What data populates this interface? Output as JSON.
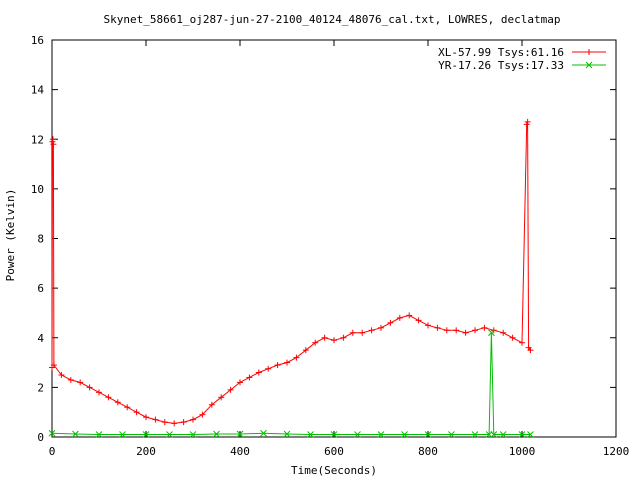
{
  "chart_data": {
    "type": "line",
    "title": "Skynet_58661_oj287-jun-27-2100_40124_48076_cal.txt, LOWRES, declatmap",
    "xlabel": "Time(Seconds)",
    "ylabel": "Power (Kelvin)",
    "xlim": [
      0,
      1200
    ],
    "ylim": [
      0,
      16
    ],
    "xticks": [
      0,
      200,
      400,
      600,
      800,
      1000,
      1200
    ],
    "yticks": [
      0,
      2,
      4,
      6,
      8,
      10,
      12,
      14,
      16
    ],
    "grid": false,
    "legend_position": "top-right",
    "series": [
      {
        "name": "XL-57.99 Tsys:61.16",
        "color": "#ff0000",
        "marker": "plus",
        "points": [
          [
            0,
            2.8
          ],
          [
            1,
            11.9
          ],
          [
            2,
            12.0
          ],
          [
            3,
            11.8
          ],
          [
            4,
            2.9
          ],
          [
            20,
            2.5
          ],
          [
            40,
            2.3
          ],
          [
            60,
            2.2
          ],
          [
            80,
            2.0
          ],
          [
            100,
            1.8
          ],
          [
            120,
            1.6
          ],
          [
            140,
            1.4
          ],
          [
            160,
            1.2
          ],
          [
            180,
            1.0
          ],
          [
            200,
            0.8
          ],
          [
            220,
            0.7
          ],
          [
            240,
            0.6
          ],
          [
            260,
            0.55
          ],
          [
            280,
            0.6
          ],
          [
            300,
            0.7
          ],
          [
            320,
            0.9
          ],
          [
            340,
            1.3
          ],
          [
            360,
            1.6
          ],
          [
            380,
            1.9
          ],
          [
            400,
            2.2
          ],
          [
            420,
            2.4
          ],
          [
            440,
            2.6
          ],
          [
            460,
            2.75
          ],
          [
            480,
            2.9
          ],
          [
            500,
            3.0
          ],
          [
            520,
            3.2
          ],
          [
            540,
            3.5
          ],
          [
            560,
            3.8
          ],
          [
            580,
            4.0
          ],
          [
            600,
            3.9
          ],
          [
            620,
            4.0
          ],
          [
            640,
            4.2
          ],
          [
            660,
            4.2
          ],
          [
            680,
            4.3
          ],
          [
            700,
            4.4
          ],
          [
            720,
            4.6
          ],
          [
            740,
            4.8
          ],
          [
            760,
            4.9
          ],
          [
            780,
            4.7
          ],
          [
            800,
            4.5
          ],
          [
            820,
            4.4
          ],
          [
            840,
            4.3
          ],
          [
            860,
            4.3
          ],
          [
            880,
            4.2
          ],
          [
            900,
            4.3
          ],
          [
            920,
            4.4
          ],
          [
            940,
            4.3
          ],
          [
            960,
            4.2
          ],
          [
            980,
            4.0
          ],
          [
            1000,
            3.8
          ],
          [
            1010,
            12.6
          ],
          [
            1012,
            12.7
          ],
          [
            1014,
            3.6
          ],
          [
            1018,
            3.5
          ]
        ]
      },
      {
        "name": "YR-17.26 Tsys:17.33",
        "color": "#00c000",
        "marker": "cross",
        "points": [
          [
            0,
            0.15
          ],
          [
            50,
            0.12
          ],
          [
            100,
            0.1
          ],
          [
            150,
            0.1
          ],
          [
            200,
            0.1
          ],
          [
            250,
            0.1
          ],
          [
            300,
            0.1
          ],
          [
            350,
            0.12
          ],
          [
            400,
            0.12
          ],
          [
            450,
            0.15
          ],
          [
            500,
            0.12
          ],
          [
            550,
            0.1
          ],
          [
            600,
            0.1
          ],
          [
            650,
            0.1
          ],
          [
            700,
            0.1
          ],
          [
            750,
            0.1
          ],
          [
            800,
            0.1
          ],
          [
            850,
            0.1
          ],
          [
            900,
            0.1
          ],
          [
            930,
            0.1
          ],
          [
            935,
            4.2
          ],
          [
            940,
            0.1
          ],
          [
            960,
            0.1
          ],
          [
            1000,
            0.1
          ],
          [
            1018,
            0.1
          ]
        ]
      }
    ]
  }
}
